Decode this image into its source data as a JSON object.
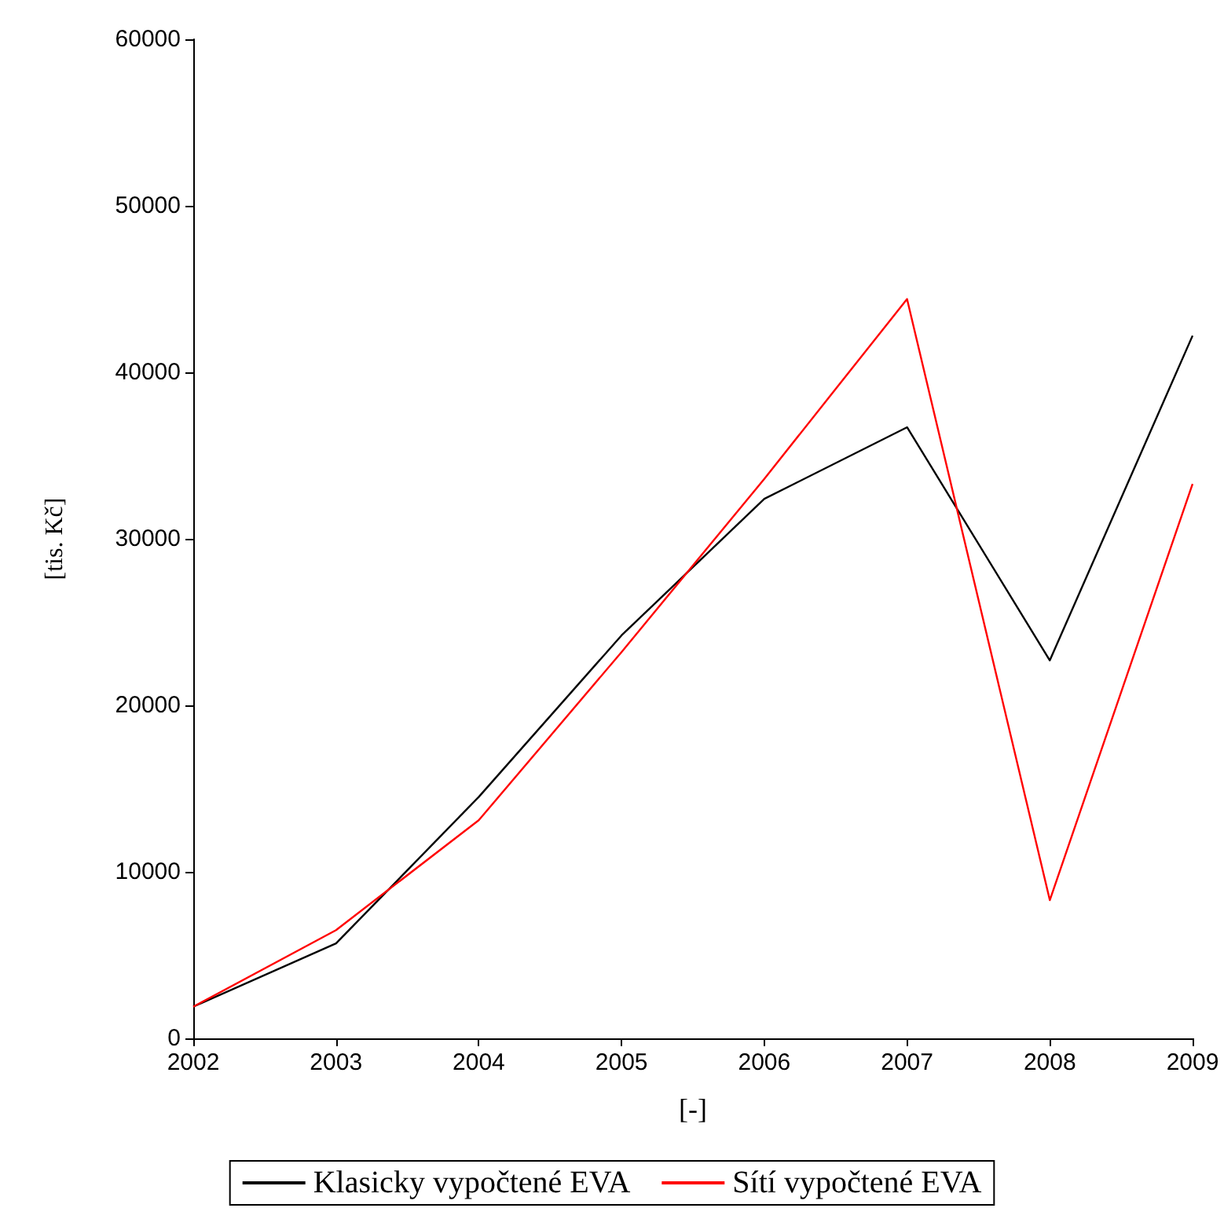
{
  "chart_data": {
    "type": "line",
    "xlabel": "[-]",
    "ylabel": "[tis. Kč]",
    "x": [
      2002,
      2003,
      2004,
      2005,
      2006,
      2007,
      2008,
      2009
    ],
    "series": [
      {
        "name": "Klasicky vypočtené EVA",
        "color": "#000000",
        "values": [
          1900,
          5700,
          14500,
          24200,
          32400,
          36700,
          22700,
          42200
        ]
      },
      {
        "name": "Sítí vypočtené EVA",
        "color": "#ff0000",
        "values": [
          1900,
          6500,
          13100,
          23200,
          33600,
          44400,
          8300,
          33300
        ]
      }
    ],
    "xlim": [
      2002,
      2009
    ],
    "xticks": [
      2002,
      2003,
      2004,
      2005,
      2006,
      2007,
      2008,
      2009
    ],
    "ylim": [
      0,
      60000
    ],
    "yticks": [
      0,
      10000,
      20000,
      30000,
      40000,
      50000,
      60000
    ],
    "grid": false,
    "legend": "bottom",
    "marker": "none",
    "line_style": "solid"
  }
}
